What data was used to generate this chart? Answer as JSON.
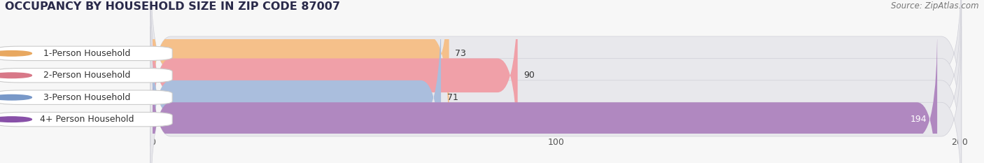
{
  "title": "OCCUPANCY BY HOUSEHOLD SIZE IN ZIP CODE 87007",
  "source": "Source: ZipAtlas.com",
  "categories": [
    "1-Person Household",
    "2-Person Household",
    "3-Person Household",
    "4+ Person Household"
  ],
  "values": [
    73,
    90,
    71,
    194
  ],
  "bar_colors": [
    "#f5c08a",
    "#f0a0a8",
    "#aabedd",
    "#b088c0"
  ],
  "bar_bg_color": "#e8e8ec",
  "xlim": [
    0,
    200
  ],
  "xticks": [
    0,
    100,
    200
  ],
  "label_colors": [
    "#333333",
    "#333333",
    "#333333",
    "#ffffff"
  ],
  "title_color": "#2a2a4a",
  "source_color": "#777777",
  "title_fontsize": 11.5,
  "source_fontsize": 8.5,
  "bar_label_fontsize": 9,
  "category_fontsize": 9,
  "tick_fontsize": 9,
  "bg_color": "#f7f7f7"
}
